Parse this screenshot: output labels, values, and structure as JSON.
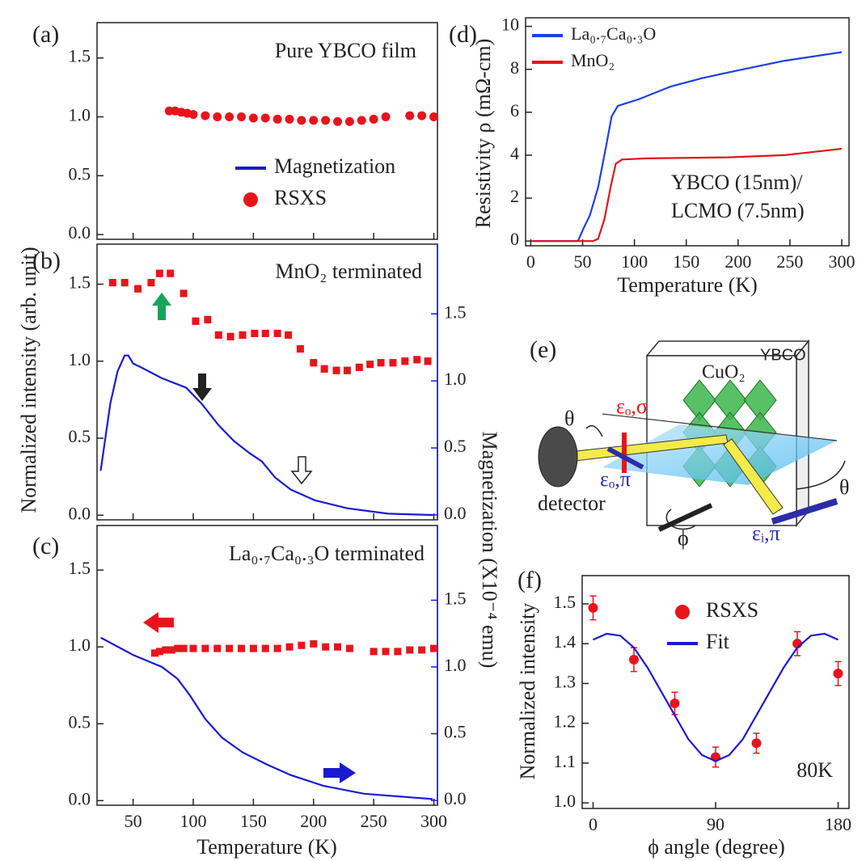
{
  "chart_data": [
    {
      "type": "scatter",
      "panel": "(a)",
      "title": "Pure YBCO film",
      "xlim": [
        20,
        303
      ],
      "xticks": [
        50,
        100,
        150,
        200,
        250,
        300
      ],
      "ylim": [
        -0.04,
        1.8
      ],
      "yticks": [
        {
          "value": 0,
          "label": "0.0"
        },
        0.5,
        {
          "value": 1,
          "label": "1.0"
        },
        1.5
      ],
      "legend": "lower right",
      "series": [
        {
          "name": "Magnetization",
          "color": "#1a1ad0",
          "mark": "line",
          "x": [],
          "values": []
        },
        {
          "name": "RSXS",
          "color": "#e8141c",
          "mark": "circle",
          "x": [
            80,
            85,
            90,
            95,
            100,
            110,
            120,
            130,
            140,
            150,
            160,
            170,
            180,
            190,
            200,
            210,
            220,
            230,
            240,
            250,
            260,
            280,
            290,
            300
          ],
          "values": [
            1.05,
            1.05,
            1.04,
            1.03,
            1.02,
            1.01,
            1.0,
            1.0,
            1.0,
            0.99,
            0.99,
            0.98,
            0.98,
            0.97,
            0.97,
            0.97,
            0.96,
            0.96,
            0.97,
            0.98,
            1.0,
            1.01,
            1.01,
            1.0
          ]
        }
      ]
    },
    {
      "type": "scatter",
      "panel": "(b)",
      "title": "MnO₂ terminated",
      "ylabel": "Normalized intensity (arb. unit)",
      "y2label": "Magnetization (X10⁻⁴ emu)",
      "xlim": [
        20,
        303
      ],
      "xticks": [
        50,
        100,
        150,
        200,
        250,
        300
      ],
      "ylim": [
        -0.03,
        1.76
      ],
      "yticks": [
        {
          "value": 0,
          "label": "0.0"
        },
        0.5,
        {
          "value": 1,
          "label": "1.0"
        },
        1.5
      ],
      "y2lim": [
        -0.036,
        2.02
      ],
      "y2ticks": [
        {
          "value": 0,
          "label": "0.0"
        },
        0.5,
        {
          "value": 1,
          "label": "1.0"
        },
        1.5
      ],
      "series": [
        {
          "color": "#e8141c",
          "mark": "square",
          "x": [
            33,
            43,
            54,
            65,
            72,
            81,
            92,
            102,
            112,
            121,
            131,
            141,
            151,
            160,
            170,
            179,
            189,
            200,
            209,
            219,
            228,
            238,
            247,
            256,
            266,
            276,
            286,
            295
          ],
          "values": [
            1.51,
            1.51,
            1.47,
            1.51,
            1.57,
            1.57,
            1.44,
            1.26,
            1.27,
            1.17,
            1.16,
            1.17,
            1.18,
            1.18,
            1.18,
            1.17,
            1.08,
            0.99,
            0.95,
            0.94,
            0.94,
            0.96,
            0.98,
            0.99,
            0.99,
            1.0,
            1.01,
            1.0
          ],
          "errors": [
            0.02,
            0.02,
            0.02,
            0.02,
            0.02,
            0.02,
            0.02,
            0.02,
            0.02,
            0.02,
            0.02,
            0.02,
            0.02,
            0.02,
            0.02,
            0.02,
            0.02,
            0.02,
            0.02,
            0.02,
            0.02,
            0.02,
            0.02,
            0.02,
            0.02,
            0.02,
            0.02,
            0.02
          ]
        },
        {
          "color": "#1a1ad0",
          "mark": "line",
          "axis": "y2",
          "x": [
            23,
            31,
            37,
            43,
            46,
            50,
            57,
            74,
            94,
            107,
            121,
            134,
            147,
            157,
            168,
            181,
            201,
            228,
            262,
            299
          ],
          "values": [
            0.33,
            0.83,
            1.07,
            1.19,
            1.19,
            1.13,
            1.1,
            1.02,
            0.95,
            0.83,
            0.67,
            0.55,
            0.46,
            0.4,
            0.28,
            0.19,
            0.11,
            0.05,
            0.01,
            0.0
          ]
        }
      ]
    },
    {
      "type": "scatter",
      "panel": "(c)",
      "title": "La₀.₇Ca₀.₃O terminated",
      "xlabel": "Temperature (K)",
      "xlim": [
        20,
        303
      ],
      "xticks": [
        50,
        100,
        150,
        200,
        250,
        300
      ],
      "ylim": [
        -0.03,
        1.79
      ],
      "yticks": [
        {
          "value": 0,
          "label": "0.0"
        },
        0.5,
        {
          "value": 1,
          "label": "1.0"
        },
        1.5
      ],
      "y2lim": [
        -0.036,
        2.06
      ],
      "y2ticks": [
        {
          "value": 0,
          "label": "0.0"
        },
        0.5,
        {
          "value": 1,
          "label": "1.0"
        },
        1.5
      ],
      "series": [
        {
          "color": "#e8141c",
          "mark": "square",
          "x": [
            68,
            72,
            77,
            82,
            87,
            92,
            100,
            110,
            120,
            130,
            140,
            150,
            160,
            170,
            180,
            190,
            200,
            210,
            220,
            230,
            250,
            260,
            270,
            280,
            290,
            300
          ],
          "values": [
            0.96,
            0.97,
            0.98,
            0.98,
            0.99,
            0.99,
            0.99,
            0.99,
            0.99,
            0.99,
            0.99,
            0.99,
            0.99,
            0.99,
            1.0,
            1.01,
            1.02,
            1.0,
            1.0,
            0.99,
            0.97,
            0.97,
            0.97,
            0.98,
            0.98,
            0.99
          ],
          "errors": [
            0.015,
            0.015,
            0.015,
            0.015,
            0.015,
            0.015,
            0.015,
            0.015,
            0.015,
            0.015,
            0.015,
            0.015,
            0.015,
            0.015,
            0.015,
            0.015,
            0.015,
            0.015,
            0.015,
            0.015,
            0.015,
            0.015,
            0.015,
            0.015,
            0.015,
            0.015
          ]
        },
        {
          "color": "#1a1ad0",
          "mark": "line",
          "axis": "y2",
          "x": [
            23,
            50,
            74,
            87,
            97,
            110,
            124,
            141,
            161,
            181,
            208,
            242,
            299
          ],
          "values": [
            1.22,
            1.09,
            1.0,
            0.91,
            0.79,
            0.61,
            0.47,
            0.36,
            0.27,
            0.19,
            0.11,
            0.05,
            0.01
          ]
        }
      ]
    },
    {
      "type": "line",
      "panel": "(d)",
      "xlabel": "Temperature (K)",
      "ylabel": "Resistivity ρ (mΩ-cm)",
      "annotation": [
        "YBCO (15nm)/",
        "LCMO (7.5nm)"
      ],
      "xlim": [
        -5,
        307
      ],
      "xticks": [
        0,
        50,
        100,
        150,
        200,
        250,
        300
      ],
      "ylim": [
        -0.22,
        10.4
      ],
      "yticks": [
        0,
        2,
        4,
        6,
        8,
        10
      ],
      "legend": "upper left",
      "series": [
        {
          "name": "La₀.₇Ca₀.₃O",
          "color": "#1f3fe0",
          "mark": "line",
          "x": [
            0,
            45,
            46,
            51,
            57,
            65,
            73,
            78,
            84,
            104,
            135,
            166,
            205,
            245,
            300
          ],
          "values": [
            0,
            0,
            0.05,
            0.6,
            1.2,
            2.5,
            4.5,
            5.8,
            6.3,
            6.6,
            7.2,
            7.6,
            8.0,
            8.4,
            8.8
          ]
        },
        {
          "name": "MnO₂",
          "color": "#e0141c",
          "mark": "line",
          "x": [
            0,
            60,
            65,
            71,
            77,
            82,
            88,
            112,
            190,
            245,
            300
          ],
          "values": [
            0,
            0,
            0.1,
            1.0,
            2.5,
            3.6,
            3.8,
            3.85,
            3.9,
            4.0,
            4.3
          ]
        }
      ]
    },
    {
      "type": "scatter",
      "panel": "(f)",
      "xlabel": "ϕ angle (degree)",
      "ylabel": "Normalized intensity",
      "annotation": "80K",
      "xlim": [
        -8,
        188
      ],
      "xticks": [
        0,
        90,
        180
      ],
      "ylim": [
        0.986,
        1.571
      ],
      "yticks": [
        {
          "value": 1,
          "label": "1.0"
        },
        1.1,
        1.2,
        1.3,
        1.4,
        1.5
      ],
      "legend": "upper center",
      "series": [
        {
          "name": "RSXS",
          "color": "#e8141c",
          "mark": "circle",
          "x": [
            0,
            30,
            60,
            90,
            120,
            150,
            180
          ],
          "values": [
            1.49,
            1.36,
            1.25,
            1.115,
            1.15,
            1.4,
            1.325
          ],
          "errors": [
            0.03,
            0.03,
            0.028,
            0.025,
            0.025,
            0.03,
            0.03
          ]
        },
        {
          "name": "Fit",
          "color": "#1a1ad0",
          "mark": "line",
          "x": [
            0,
            10,
            20,
            30,
            40,
            50,
            60,
            70,
            80,
            90,
            100,
            110,
            120,
            130,
            140,
            150,
            160,
            170,
            180
          ],
          "values": [
            1.41,
            1.425,
            1.42,
            1.39,
            1.34,
            1.28,
            1.22,
            1.16,
            1.12,
            1.105,
            1.12,
            1.16,
            1.22,
            1.28,
            1.34,
            1.39,
            1.42,
            1.425,
            1.41
          ]
        }
      ]
    }
  ],
  "diagram": {
    "panel": "(e)",
    "sample": "YBCO",
    "plane": "CuO₂",
    "theta_out": "θ",
    "eps_out_sigma": "εₒ,σ",
    "eps_out_pi": "εₒ,π",
    "detector": "detector",
    "phi": "ϕ",
    "eps_in_pi": "εᵢ,π",
    "theta_in": "θ"
  }
}
